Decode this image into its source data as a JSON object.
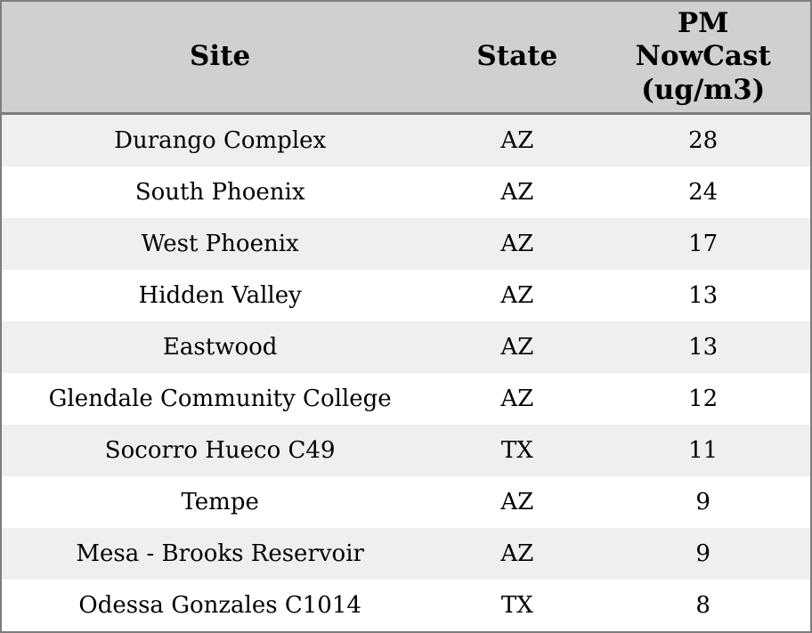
{
  "chart_data": {
    "type": "table",
    "columns": [
      "Site",
      "State",
      "PM NowCast (ug/m3)"
    ],
    "columns_display": [
      "Site",
      "State",
      "PM\nNowCast\n(ug/m3)"
    ],
    "rows": [
      [
        "Durango Complex",
        "AZ",
        28
      ],
      [
        "South Phoenix",
        "AZ",
        24
      ],
      [
        "West Phoenix",
        "AZ",
        17
      ],
      [
        "Hidden Valley",
        "AZ",
        13
      ],
      [
        "Eastwood",
        "AZ",
        13
      ],
      [
        "Glendale Community College",
        "AZ",
        12
      ],
      [
        "Socorro Hueco C49",
        "TX",
        11
      ],
      [
        "Tempe",
        "AZ",
        9
      ],
      [
        "Mesa - Brooks Reservoir",
        "AZ",
        9
      ],
      [
        "Odessa Gonzales C1014",
        "TX",
        8
      ]
    ]
  },
  "colors": {
    "header_bg": "#d0d0d0",
    "row_odd_bg": "#efefef",
    "row_even_bg": "#ffffff",
    "border": "#7d7d7d",
    "text": "#000000"
  }
}
